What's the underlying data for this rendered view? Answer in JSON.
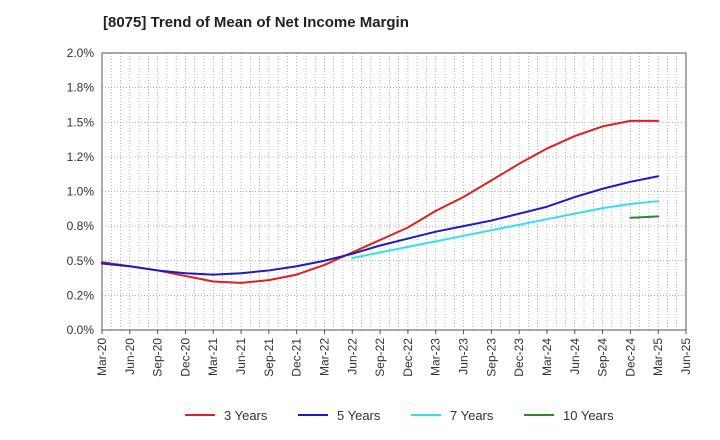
{
  "chart_data": {
    "type": "line",
    "title": "[8075]  Trend of Mean of Net Income Margin",
    "xlabel": "",
    "ylabel": "",
    "x": [
      "Mar-20",
      "Jun-20",
      "Sep-20",
      "Dec-20",
      "Mar-21",
      "Jun-21",
      "Sep-21",
      "Dec-21",
      "Mar-22",
      "Jun-22",
      "Sep-22",
      "Dec-22",
      "Mar-23",
      "Jun-23",
      "Sep-23",
      "Dec-23",
      "Mar-24",
      "Jun-24",
      "Sep-24",
      "Dec-24",
      "Mar-25"
    ],
    "x_ticks": [
      "Mar-20",
      "Jun-20",
      "Sep-20",
      "Dec-20",
      "Mar-21",
      "Jun-21",
      "Sep-21",
      "Dec-21",
      "Mar-22",
      "Jun-22",
      "Sep-22",
      "Dec-22",
      "Mar-23",
      "Jun-23",
      "Sep-23",
      "Dec-23",
      "Mar-24",
      "Jun-24",
      "Sep-24",
      "Dec-24",
      "Mar-25",
      "Jun-25"
    ],
    "y_ticks": [
      "0.0%",
      "0.2%",
      "0.5%",
      "0.8%",
      "1.0%",
      "1.2%",
      "1.5%",
      "1.8%",
      "2.0%"
    ],
    "ylim": [
      0,
      2.0
    ],
    "grid": true,
    "legend_position": "bottom",
    "series": [
      {
        "name": "3 Years",
        "color": "#e02020",
        "values": [
          0.49,
          0.46,
          0.43,
          0.39,
          0.35,
          0.34,
          0.36,
          0.4,
          0.47,
          0.56,
          0.65,
          0.74,
          0.86,
          0.96,
          1.08,
          1.2,
          1.31,
          1.4,
          1.47,
          1.51,
          1.51
        ]
      },
      {
        "name": "5 Years",
        "color": "#1a1ac8",
        "values": [
          0.48,
          0.46,
          0.43,
          0.41,
          0.4,
          0.41,
          0.43,
          0.46,
          0.5,
          0.55,
          0.61,
          0.66,
          0.71,
          0.75,
          0.79,
          0.84,
          0.89,
          0.96,
          1.02,
          1.07,
          1.11
        ]
      },
      {
        "name": "7 Years",
        "color": "#33e0f0",
        "values": [
          null,
          null,
          null,
          null,
          null,
          null,
          null,
          null,
          null,
          0.52,
          0.56,
          0.6,
          0.64,
          0.68,
          0.72,
          0.76,
          0.8,
          0.84,
          0.88,
          0.91,
          0.93
        ]
      },
      {
        "name": "10 Years",
        "color": "#2a8a2a",
        "values": [
          null,
          null,
          null,
          null,
          null,
          null,
          null,
          null,
          null,
          null,
          null,
          null,
          null,
          null,
          null,
          null,
          null,
          null,
          null,
          0.81,
          0.82
        ]
      }
    ]
  }
}
